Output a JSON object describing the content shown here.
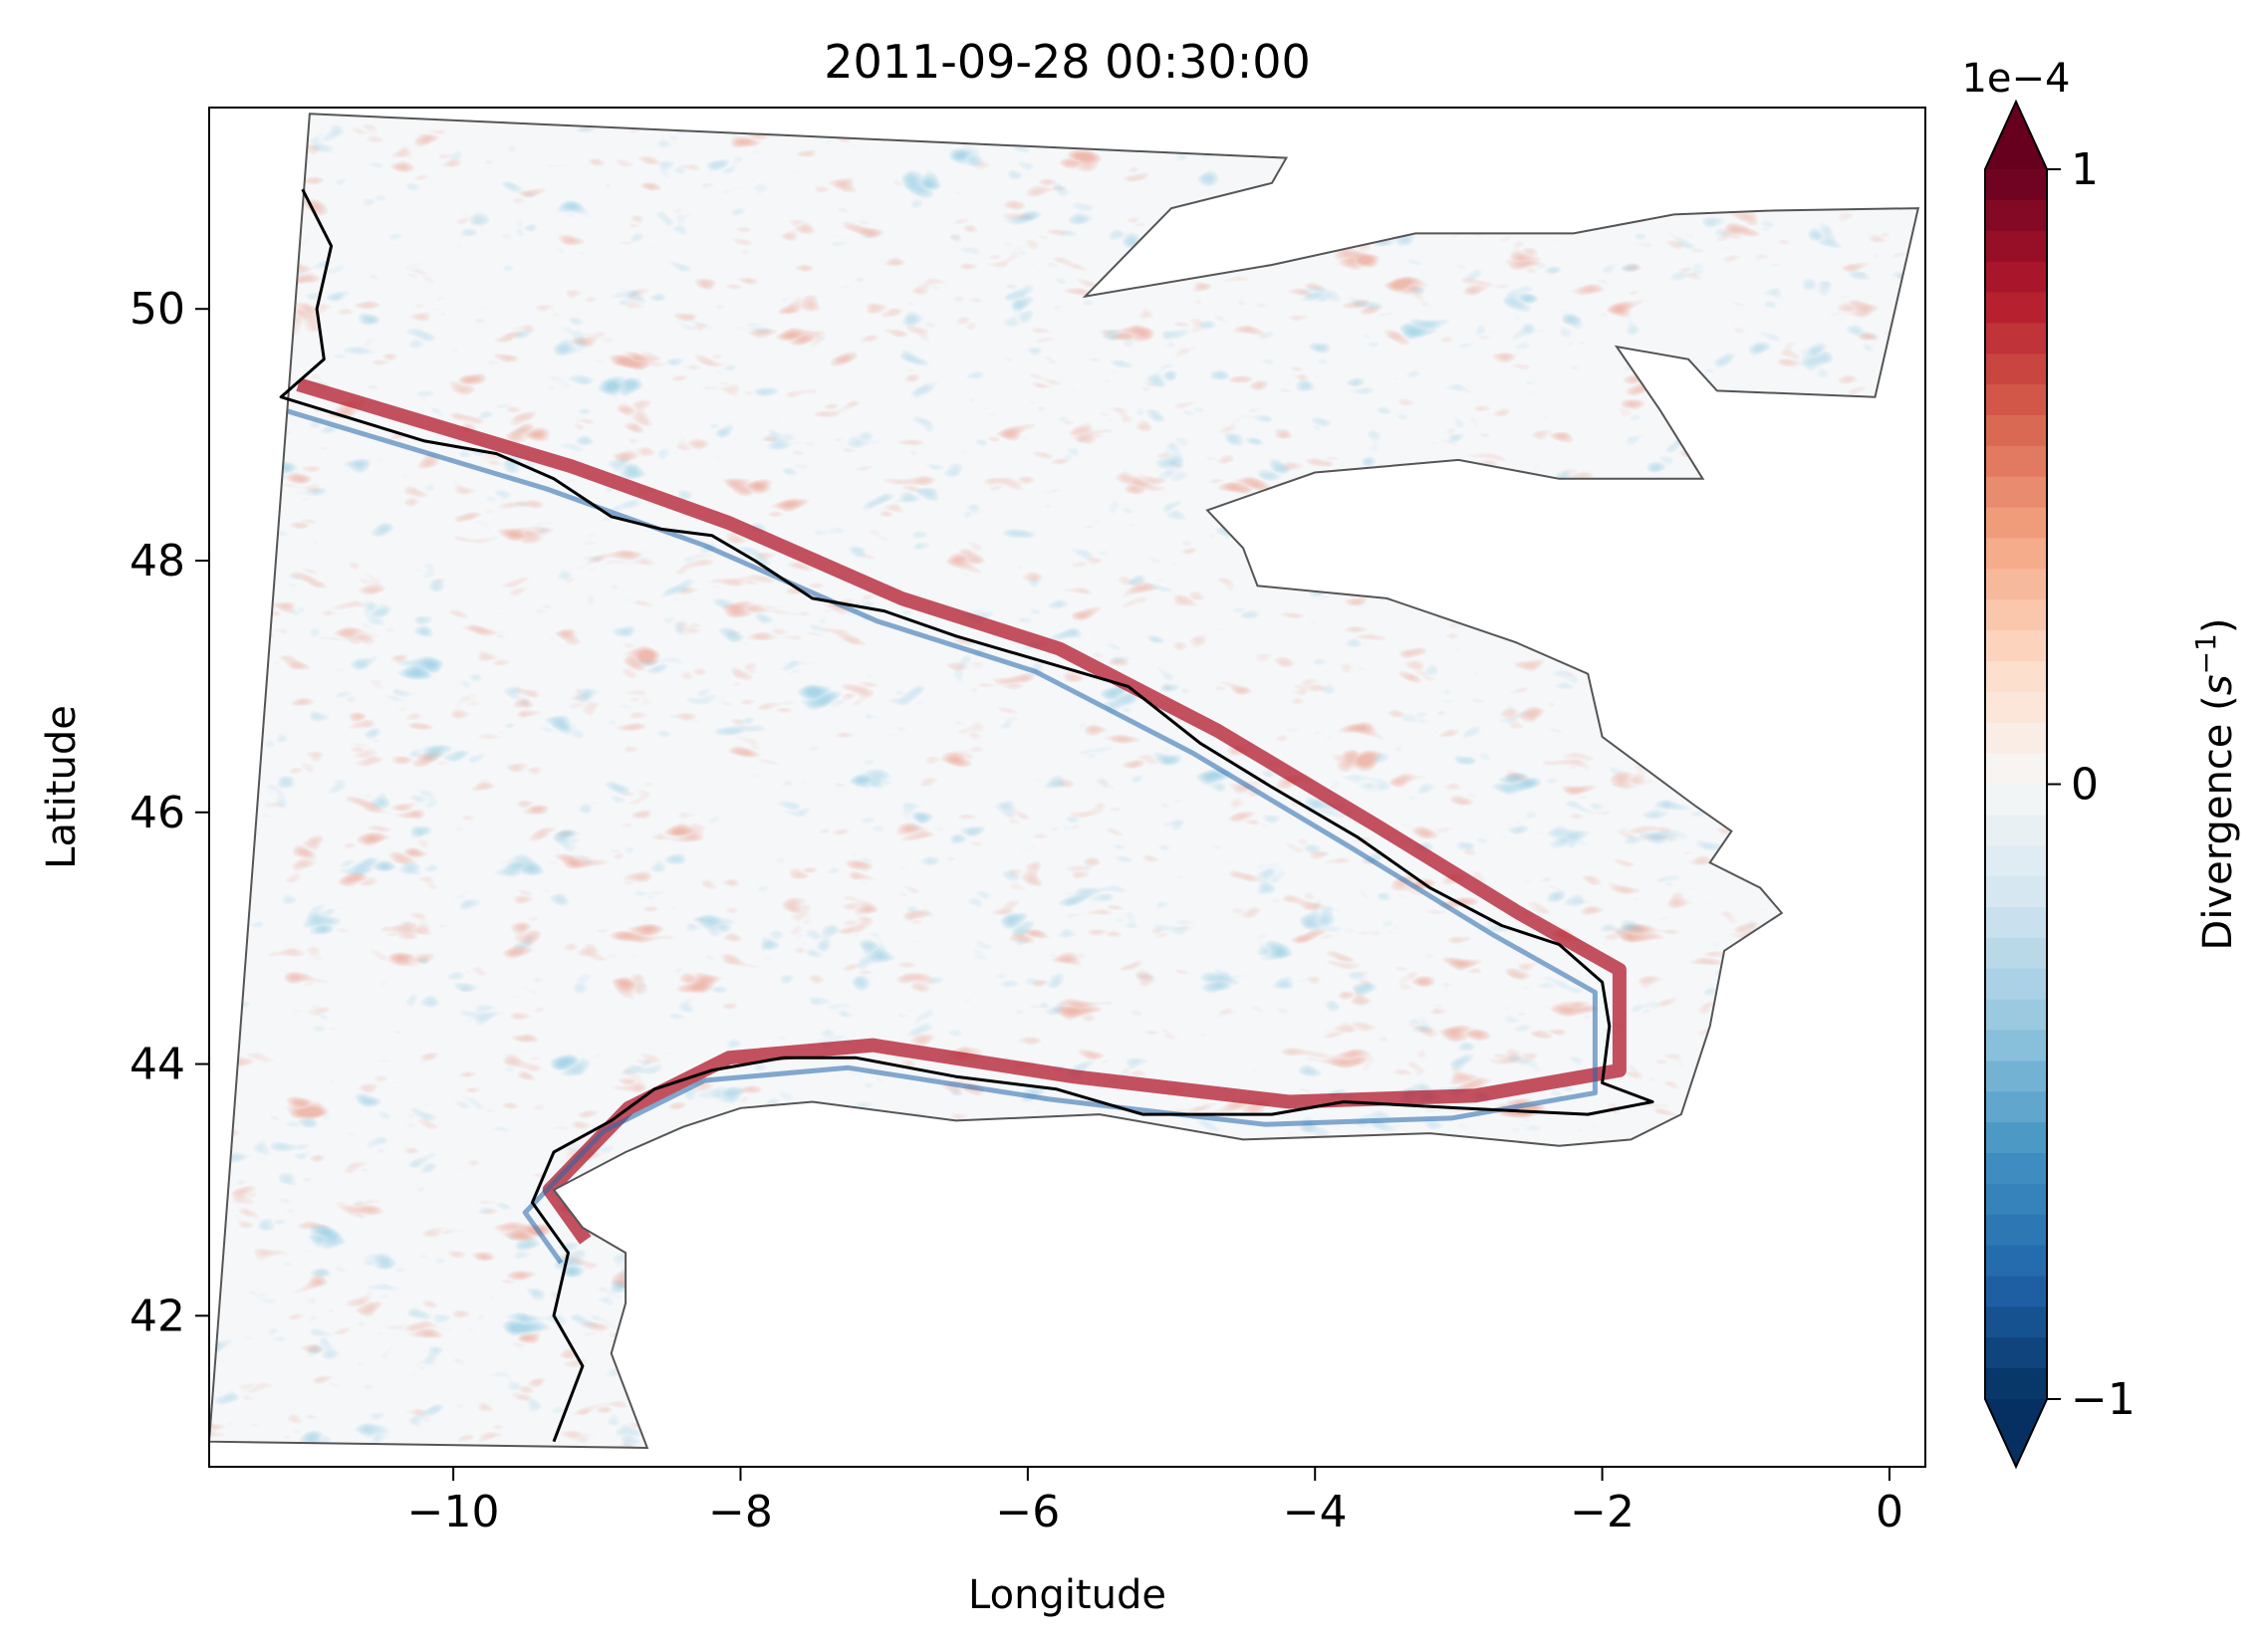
{
  "chart_data": {
    "type": "heatmap",
    "title": "2011-09-28 00:30:00",
    "xlabel": "Longitude",
    "ylabel": "Latitude",
    "xlim": [
      -11.7,
      0.25
    ],
    "ylim": [
      40.8,
      51.6
    ],
    "xticks": [
      -10,
      -8,
      -6,
      -4,
      -2,
      0
    ],
    "xtick_labels": [
      "−10",
      "−8",
      "−6",
      "−4",
      "−2",
      "0"
    ],
    "yticks": [
      42,
      44,
      46,
      48,
      50
    ],
    "ytick_labels": [
      "42",
      "44",
      "46",
      "48",
      "50"
    ],
    "grid": false,
    "colormap": "RdBu_r",
    "colorbar": {
      "label": "Divergence (",
      "label_unit": "s",
      "label_exponent": "−1",
      "label_close": ")",
      "multiplier": "1e−4",
      "vmin": -1,
      "vmax": 1,
      "levels": 40,
      "ticks": [
        -1,
        0,
        1
      ],
      "tick_labels": [
        "−1",
        "0",
        "1"
      ],
      "extend": "both",
      "colors": [
        "#053061",
        "#2166ac",
        "#4393c3",
        "#92c5de",
        "#d1e5f0",
        "#f7f7f7",
        "#fddbc7",
        "#f4a582",
        "#d6604d",
        "#b2182b",
        "#67001f"
      ]
    },
    "domain_outline": [
      [
        -11.0,
        51.55
      ],
      [
        -4.2,
        51.2
      ],
      [
        -4.3,
        51.0
      ],
      [
        -5.0,
        50.8
      ],
      [
        -5.6,
        50.1
      ],
      [
        -4.3,
        50.35
      ],
      [
        -3.3,
        50.6
      ],
      [
        -2.2,
        50.6
      ],
      [
        -1.5,
        50.75
      ],
      [
        -0.85,
        50.78
      ],
      [
        0.2,
        50.8
      ],
      [
        -0.1,
        49.3
      ],
      [
        -1.2,
        49.35
      ],
      [
        -1.4,
        49.6
      ],
      [
        -1.9,
        49.7
      ],
      [
        -1.6,
        49.2
      ],
      [
        -1.3,
        48.65
      ],
      [
        -2.3,
        48.65
      ],
      [
        -3.0,
        48.8
      ],
      [
        -4.0,
        48.7
      ],
      [
        -4.75,
        48.4
      ],
      [
        -4.5,
        48.1
      ],
      [
        -4.4,
        47.8
      ],
      [
        -3.5,
        47.7
      ],
      [
        -2.6,
        47.35
      ],
      [
        -2.1,
        47.1
      ],
      [
        -2.0,
        46.6
      ],
      [
        -1.35,
        46.05
      ],
      [
        -1.1,
        45.85
      ],
      [
        -1.25,
        45.6
      ],
      [
        -0.9,
        45.4
      ],
      [
        -0.75,
        45.2
      ],
      [
        -1.15,
        44.9
      ],
      [
        -1.25,
        44.3
      ],
      [
        -1.45,
        43.6
      ],
      [
        -1.8,
        43.4
      ],
      [
        -2.3,
        43.35
      ],
      [
        -3.2,
        43.45
      ],
      [
        -4.5,
        43.4
      ],
      [
        -5.5,
        43.6
      ],
      [
        -6.5,
        43.55
      ],
      [
        -7.5,
        43.7
      ],
      [
        -8.0,
        43.65
      ],
      [
        -8.4,
        43.5
      ],
      [
        -8.8,
        43.3
      ],
      [
        -9.3,
        43.0
      ],
      [
        -9.1,
        42.7
      ],
      [
        -8.8,
        42.5
      ],
      [
        -8.8,
        42.1
      ],
      [
        -8.9,
        41.7
      ],
      [
        -8.65,
        40.95
      ],
      [
        -11.7,
        41.0
      ]
    ],
    "isobath": [
      [
        -11.05,
        50.95
      ],
      [
        -10.85,
        50.5
      ],
      [
        -10.95,
        50.0
      ],
      [
        -10.9,
        49.6
      ],
      [
        -11.2,
        49.3
      ],
      [
        -10.2,
        48.95
      ],
      [
        -9.7,
        48.85
      ],
      [
        -9.3,
        48.65
      ],
      [
        -8.9,
        48.35
      ],
      [
        -8.55,
        48.25
      ],
      [
        -8.2,
        48.2
      ],
      [
        -7.9,
        48.0
      ],
      [
        -7.5,
        47.7
      ],
      [
        -7.0,
        47.6
      ],
      [
        -6.5,
        47.4
      ],
      [
        -5.9,
        47.2
      ],
      [
        -5.3,
        47.0
      ],
      [
        -4.8,
        46.55
      ],
      [
        -4.3,
        46.2
      ],
      [
        -3.7,
        45.8
      ],
      [
        -3.2,
        45.4
      ],
      [
        -2.7,
        45.1
      ],
      [
        -2.3,
        44.95
      ],
      [
        -2.0,
        44.65
      ],
      [
        -1.95,
        44.3
      ],
      [
        -2.0,
        43.85
      ],
      [
        -1.65,
        43.7
      ],
      [
        -2.1,
        43.6
      ],
      [
        -3.0,
        43.65
      ],
      [
        -3.8,
        43.7
      ],
      [
        -4.3,
        43.6
      ],
      [
        -5.2,
        43.6
      ],
      [
        -5.8,
        43.8
      ],
      [
        -6.5,
        43.9
      ],
      [
        -7.2,
        44.05
      ],
      [
        -7.7,
        44.05
      ],
      [
        -8.2,
        43.95
      ],
      [
        -8.6,
        43.8
      ],
      [
        -8.9,
        43.55
      ],
      [
        -9.3,
        43.3
      ],
      [
        -9.45,
        42.9
      ],
      [
        -9.2,
        42.5
      ],
      [
        -9.3,
        42.0
      ],
      [
        -9.1,
        41.6
      ],
      [
        -9.3,
        41.0
      ]
    ],
    "shelf_band": [
      [
        -11.2,
        49.3
      ],
      [
        -9.3,
        48.65
      ],
      [
        -8.2,
        48.2
      ],
      [
        -7.0,
        47.6
      ],
      [
        -5.9,
        47.2
      ],
      [
        -4.8,
        46.55
      ],
      [
        -3.7,
        45.8
      ],
      [
        -2.7,
        45.1
      ],
      [
        -2.0,
        44.65
      ],
      [
        -2.0,
        43.85
      ],
      [
        -3.0,
        43.65
      ],
      [
        -4.3,
        43.6
      ],
      [
        -5.8,
        43.8
      ],
      [
        -7.2,
        44.05
      ],
      [
        -8.2,
        43.95
      ],
      [
        -8.9,
        43.55
      ],
      [
        -9.45,
        42.9
      ],
      [
        -9.2,
        42.5
      ]
    ]
  }
}
